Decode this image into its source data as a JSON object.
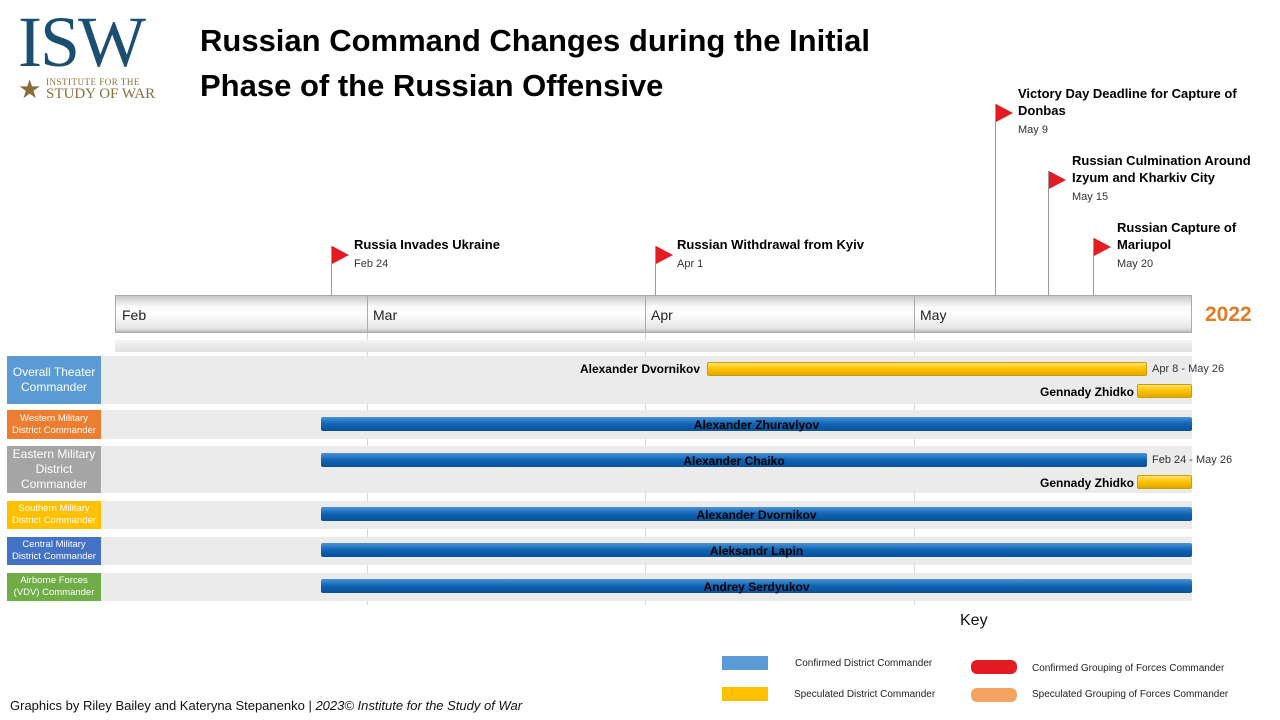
{
  "logo": {
    "text": "ISW",
    "line1": "INSTITUTE FOR THE",
    "line2": "STUDY OF WAR"
  },
  "title": {
    "line1": "Russian Command Changes during the Initial",
    "line2": "Phase of the Russian Offensive"
  },
  "axis": {
    "months": [
      "Feb",
      "Mar",
      "Apr",
      "May"
    ],
    "year": "2022"
  },
  "events": [
    {
      "title": "Russia Invades Ukraine",
      "date": "Feb 24"
    },
    {
      "title": "Russian Withdrawal from Kyiv",
      "date": "Apr 1"
    },
    {
      "title": "Victory Day Deadline for Capture of Donbas",
      "date": "May 9"
    },
    {
      "title": "Russian Culmination Around Izyum and Kharkiv City",
      "date": "May 15"
    },
    {
      "title": "Russian Capture of Mariupol",
      "date": "May 20"
    }
  ],
  "rows": [
    {
      "label": "Overall Theater Commander",
      "color": "#5b9bd5",
      "commanders": [
        {
          "name": "Alexander Dvornikov",
          "type": "speculated",
          "dates": "Apr 8 - May 26"
        },
        {
          "name": "Gennady Zhidko",
          "type": "speculated"
        }
      ]
    },
    {
      "label": "Western Military District Commander",
      "color": "#ed7d31",
      "commanders": [
        {
          "name": "Alexander Zhuravlyov",
          "type": "confirmed"
        }
      ]
    },
    {
      "label": "Eastern Military District Commander",
      "color": "#a5a5a5",
      "commanders": [
        {
          "name": "Alexander Chaiko",
          "type": "confirmed",
          "dates": "Feb 24 - May 26"
        },
        {
          "name": "Gennady Zhidko",
          "type": "speculated"
        }
      ]
    },
    {
      "label": "Southern Military District Commander",
      "color": "#ffc000",
      "commanders": [
        {
          "name": "Alexander Dvornikov",
          "type": "confirmed"
        }
      ]
    },
    {
      "label": "Central Military District Commander",
      "color": "#4472c4",
      "commanders": [
        {
          "name": "Aleksandr Lapin",
          "type": "confirmed"
        }
      ]
    },
    {
      "label": "Airborne Forces (VDV) Commander",
      "color": "#70ad47",
      "commanders": [
        {
          "name": "Andrey Serdyukov",
          "type": "confirmed"
        }
      ]
    }
  ],
  "key": {
    "title": "Key",
    "items": [
      {
        "label": "Confirmed District Commander",
        "color": "#5b9bd5"
      },
      {
        "label": "Speculated District Commander",
        "color": "#ffc000"
      },
      {
        "label": "Confirmed Grouping of Forces Commander",
        "color": "#e31b23"
      },
      {
        "label": "Speculated Grouping of Forces Commander",
        "color": "#f4a460"
      }
    ]
  },
  "footer": {
    "credit": "Graphics by Riley Bailey and Kateryna Stepanenko | ",
    "copyright": "2023© Institute for the Study of War"
  }
}
